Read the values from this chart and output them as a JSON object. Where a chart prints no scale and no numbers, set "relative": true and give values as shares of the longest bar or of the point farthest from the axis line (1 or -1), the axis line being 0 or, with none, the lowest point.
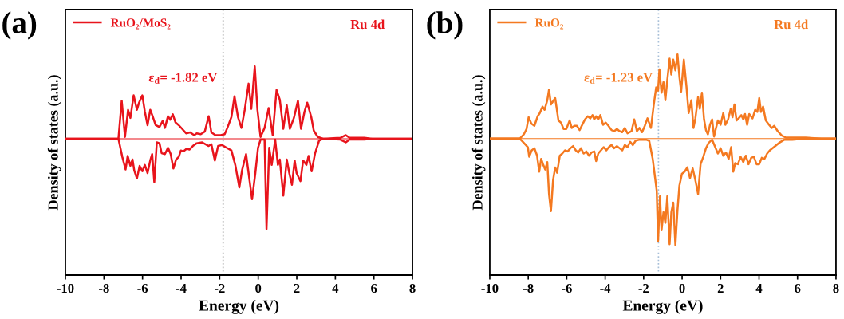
{
  "chart_data": [
    {
      "type": "line",
      "xlabel": "Energy (eV)",
      "ylabel": "Density of states (a.u.)",
      "relative": true,
      "xlim": [
        -10,
        8
      ],
      "xticks": [
        -10,
        -8,
        -6,
        -4,
        -2,
        0,
        2,
        4,
        6,
        8
      ],
      "tick_labels": "x",
      "legend": "top left",
      "grid": false,
      "marker": "none",
      "line_style": "solid",
      "annotations": [
        "(a)",
        "Ru 4d",
        "ε$_{d}$= -1.82 eV"
      ],
      "ref_lines": [
        {
          "axis": "x",
          "value": -1.82,
          "color": "#aaaaaa",
          "line_style": "dotted"
        },
        {
          "axis": "y",
          "value": 0,
          "color": "#e8141c",
          "line_style": "solid"
        }
      ],
      "series": [
        {
          "name": "RuO₂/MoS₂",
          "color": "#e8141c",
          "x": [
            -10,
            -7.25,
            -7.08,
            -6.91,
            -6.75,
            -6.63,
            -6.46,
            -6.29,
            -6.18,
            -6.01,
            -5.88,
            -5.74,
            -5.6,
            -5.46,
            -5.32,
            -5.12,
            -4.95,
            -4.84,
            -4.68,
            -4.57,
            -4.43,
            -4.29,
            -4.12,
            -3.95,
            -3.74,
            -3.53,
            -3.32,
            -3.19,
            -2.98,
            -2.77,
            -2.57,
            -2.43,
            -2.22,
            -1.94,
            -1.74,
            -1.6,
            -1.39,
            -1.23,
            -1.05,
            -0.87,
            -0.7,
            -0.5,
            -0.36,
            -0.18,
            -0.04,
            0.12,
            0.33,
            0.54,
            0.75,
            0.95,
            1.12,
            1.3,
            1.48,
            1.64,
            1.85,
            2.06,
            2.22,
            2.4,
            2.54,
            2.75,
            2.88,
            3.09,
            3.37,
            4.26,
            4.54,
            4.74,
            5.5,
            5.92,
            8
          ],
          "values": [
            0,
            0,
            0.42,
            0.02,
            0.32,
            0.23,
            0.48,
            0.32,
            0.4,
            0.48,
            0.3,
            0.15,
            0.32,
            0.24,
            0.15,
            0.13,
            0.2,
            0.12,
            0.25,
            0.21,
            0.27,
            0.18,
            0.15,
            0.11,
            0.06,
            0.07,
            0.04,
            0.06,
            0.05,
            0.08,
            0.25,
            0.07,
            0.04,
            0.04,
            0.05,
            0.12,
            0.24,
            0.47,
            0.24,
            0.12,
            0.32,
            0.61,
            0.33,
            0.8,
            0.32,
            0.02,
            0.12,
            0.34,
            0.04,
            0.54,
            0.43,
            0.11,
            0.37,
            0.11,
            0.23,
            0.42,
            0.11,
            0.3,
            0.4,
            0.24,
            0.09,
            0.02,
            0,
            0.01,
            0.04,
            0.01,
            0.01,
            0,
            0
          ]
        },
        {
          "color": "#e8141c",
          "x": [
            -10,
            -7.25,
            -7.05,
            -6.88,
            -6.77,
            -6.63,
            -6.52,
            -6.43,
            -6.29,
            -6.15,
            -6.01,
            -5.88,
            -5.74,
            -5.6,
            -5.5,
            -5.39,
            -5.26,
            -5.12,
            -5.01,
            -4.84,
            -4.68,
            -4.54,
            -4.4,
            -4.26,
            -4.12,
            -4.01,
            -3.88,
            -3.71,
            -3.57,
            -3.39,
            -3.19,
            -2.91,
            -2.57,
            -2.43,
            -2.25,
            -2.08,
            -1.88,
            -1.64,
            -1.39,
            -1.19,
            -0.98,
            -0.84,
            -0.63,
            -0.5,
            -0.32,
            -0.15,
            -0.01,
            0.12,
            0.33,
            0.43,
            0.57,
            0.7,
            0.88,
            1.02,
            1.12,
            1.3,
            1.48,
            1.61,
            1.75,
            1.89,
            1.99,
            2.19,
            2.33,
            2.5,
            2.61,
            2.77,
            2.95,
            3.16,
            3.37,
            4.26,
            4.54,
            4.74,
            5.5,
            5.92,
            8
          ],
          "values": [
            0,
            0,
            -0.2,
            -0.34,
            -0.19,
            -0.3,
            -0.23,
            -0.35,
            -0.44,
            -0.3,
            -0.36,
            -0.29,
            -0.38,
            -0.24,
            -0.17,
            -0.48,
            -0.04,
            -0.05,
            -0.16,
            -0.17,
            -0.1,
            -0.17,
            -0.33,
            -0.23,
            -0.2,
            -0.13,
            -0.14,
            -0.11,
            -0.12,
            -0.08,
            -0.05,
            -0.04,
            -0.08,
            -0.06,
            -0.24,
            -0.08,
            -0.07,
            -0.1,
            -0.13,
            -0.29,
            -0.54,
            -0.35,
            -0.17,
            -0.38,
            -0.67,
            -0.38,
            -0.1,
            -0.01,
            -0.01,
            -1,
            -0.1,
            -0.29,
            -0.01,
            -0.29,
            -0.23,
            -0.63,
            -0.23,
            -0.38,
            -0.51,
            -0.24,
            -0.38,
            -0.47,
            -0.24,
            -0.29,
            -0.19,
            -0.36,
            -0.16,
            -0.02,
            0,
            -0.01,
            -0.04,
            -0.01,
            -0.01,
            0,
            0
          ]
        }
      ]
    },
    {
      "type": "line",
      "xlabel": "Energy (eV)",
      "ylabel": "Density of states (a.u.)",
      "relative": true,
      "xlim": [
        -10,
        8
      ],
      "xticks": [
        -10,
        -8,
        -6,
        -4,
        -2,
        0,
        2,
        4,
        6,
        8
      ],
      "tick_labels": "x",
      "legend": "top left",
      "grid": false,
      "marker": "none",
      "line_style": "solid",
      "annotations": [
        "(b)",
        "Ru 4d",
        "ε$_{d}$= -1.23 eV"
      ],
      "ref_lines": [
        {
          "axis": "x",
          "value": -1.23,
          "color": "#a8bfd8",
          "line_style": "dotted"
        },
        {
          "axis": "y",
          "value": 0,
          "color": "#f47920",
          "line_style": "solid"
        }
      ],
      "series": [
        {
          "name": "RuO₂",
          "color": "#f47920",
          "x": [
            -10,
            -8.44,
            -8.23,
            -8.09,
            -7.98,
            -7.84,
            -7.68,
            -7.51,
            -7.4,
            -7.26,
            -7.15,
            -7.01,
            -6.92,
            -6.82,
            -6.71,
            -6.6,
            -6.43,
            -6.3,
            -6.16,
            -6.02,
            -5.85,
            -5.74,
            -5.6,
            -5.47,
            -5.33,
            -5.19,
            -5.05,
            -4.91,
            -4.77,
            -4.66,
            -4.57,
            -4.47,
            -4.36,
            -4.25,
            -4.11,
            -3.97,
            -3.83,
            -3.67,
            -3.53,
            -3.39,
            -3.25,
            -3.12,
            -2.98,
            -2.84,
            -2.63,
            -2.49,
            -2.35,
            -2.22,
            -2.08,
            -1.94,
            -1.8,
            -1.62,
            -1.48,
            -1.35,
            -1.25,
            -1.18,
            -1.07,
            -0.97,
            -0.87,
            -0.77,
            -0.65,
            -0.56,
            -0.46,
            -0.35,
            -0.24,
            -0.14,
            -0.05,
            0.09,
            0.23,
            0.34,
            0.48,
            0.59,
            0.69,
            0.83,
            0.92,
            1.03,
            1.14,
            1.24,
            1.34,
            1.45,
            1.56,
            1.66,
            1.75,
            1.86,
            2.0,
            2.14,
            2.25,
            2.39,
            2.53,
            2.62,
            2.72,
            2.83,
            2.94,
            3.08,
            3.18,
            3.27,
            3.38,
            3.49,
            3.66,
            3.8,
            3.91,
            4.01,
            4.1,
            4.21,
            4.35,
            4.52,
            4.66,
            4.79,
            4.97,
            5.18,
            5.39,
            5.73,
            6.42,
            7.25,
            8
          ],
          "values": [
            0,
            0,
            0.04,
            0.09,
            0.2,
            0.14,
            0.12,
            0.21,
            0.24,
            0.3,
            0.27,
            0.36,
            0.46,
            0.32,
            0.35,
            0.38,
            0.17,
            0.15,
            0.09,
            0.09,
            0.17,
            0.1,
            0.12,
            0.12,
            0.08,
            0.13,
            0.18,
            0.21,
            0.19,
            0.22,
            0.18,
            0.21,
            0.18,
            0.22,
            0.13,
            0.15,
            0.12,
            0.08,
            0.07,
            0.09,
            0.07,
            0.06,
            0.1,
            0.05,
            0.07,
            0.18,
            0.07,
            0.1,
            0.06,
            0.12,
            0.19,
            0.1,
            0.31,
            0.48,
            0.45,
            0.65,
            0.43,
            0.53,
            0.36,
            0.55,
            0.75,
            0.6,
            0.74,
            0.64,
            0.79,
            0.58,
            0.44,
            0.74,
            0.48,
            0.24,
            0.36,
            0.1,
            0.19,
            0.39,
            0.28,
            0.43,
            0.18,
            0.08,
            0.04,
            0.13,
            0.18,
            0.02,
            0.09,
            0.17,
            0.13,
            0.24,
            0.13,
            0.18,
            0.28,
            0.2,
            0.32,
            0.17,
            0.19,
            0.22,
            0.18,
            0.23,
            0.13,
            0.23,
            0.19,
            0.27,
            0.25,
            0.38,
            0.25,
            0.3,
            0.17,
            0.13,
            0.1,
            0.12,
            0.07,
            0.03,
            0.01,
            0.01,
            0.01,
            0,
            0
          ]
        },
        {
          "color": "#f47920",
          "x": [
            -10,
            -8.44,
            -8.23,
            -8.02,
            -7.95,
            -7.82,
            -7.68,
            -7.54,
            -7.43,
            -7.33,
            -7.23,
            -7.12,
            -7.01,
            -6.92,
            -6.82,
            -6.71,
            -6.6,
            -6.5,
            -6.36,
            -6.23,
            -6.09,
            -5.95,
            -5.81,
            -5.67,
            -5.53,
            -5.4,
            -5.26,
            -5.12,
            -4.98,
            -4.84,
            -4.71,
            -4.57,
            -4.47,
            -4.36,
            -4.22,
            -4.08,
            -3.94,
            -3.81,
            -3.67,
            -3.53,
            -3.39,
            -3.25,
            -3.11,
            -2.98,
            -2.84,
            -2.7,
            -2.56,
            -2.42,
            -2.22,
            -1.87,
            -1.71,
            -1.53,
            -1.32,
            -1.25,
            -1.15,
            -1.07,
            -0.97,
            -0.87,
            -0.77,
            -0.65,
            -0.56,
            -0.46,
            -0.35,
            -0.24,
            -0.14,
            -0.01,
            0.13,
            0.27,
            0.41,
            0.55,
            0.69,
            0.83,
            0.96,
            1.1,
            1.24,
            1.38,
            1.56,
            1.7,
            1.86,
            2.0,
            2.14,
            2.28,
            2.42,
            2.55,
            2.66,
            2.76,
            2.9,
            3.04,
            3.18,
            3.31,
            3.45,
            3.59,
            3.73,
            3.87,
            4.01,
            4.14,
            4.28,
            4.42,
            4.56,
            4.77,
            5.04,
            5.32,
            5.73,
            6.42,
            7.25,
            8
          ],
          "values": [
            0,
            0,
            -0.04,
            -0.08,
            -0.17,
            -0.11,
            -0.09,
            -0.16,
            -0.31,
            -0.19,
            -0.24,
            -0.29,
            -0.22,
            -0.52,
            -0.68,
            -0.39,
            -0.27,
            -0.32,
            -0.16,
            -0.14,
            -0.11,
            -0.12,
            -0.09,
            -0.07,
            -0.11,
            -0.13,
            -0.09,
            -0.14,
            -0.12,
            -0.16,
            -0.13,
            -0.12,
            -0.21,
            -0.14,
            -0.11,
            -0.08,
            -0.11,
            -0.08,
            -0.06,
            -0.09,
            -0.07,
            -0.09,
            -0.11,
            -0.06,
            -0.08,
            -0.03,
            -0.06,
            -0.02,
            -0.01,
            -0.01,
            -0.02,
            -0.19,
            -0.49,
            -0.96,
            -0.54,
            -0.86,
            -0.69,
            -0.79,
            -0.54,
            -0.99,
            -0.69,
            -0.6,
            -1,
            -0.67,
            -0.44,
            -0.33,
            -0.31,
            -0.27,
            -0.37,
            -0.28,
            -0.39,
            -0.52,
            -0.24,
            -0.17,
            -0.09,
            -0.04,
            -0.01,
            -0.07,
            -0.14,
            -0.09,
            -0.16,
            -0.13,
            -0.19,
            -0.08,
            -0.31,
            -0.23,
            -0.24,
            -0.17,
            -0.22,
            -0.16,
            -0.24,
            -0.18,
            -0.17,
            -0.24,
            -0.24,
            -0.18,
            -0.19,
            -0.14,
            -0.11,
            -0.08,
            -0.04,
            -0.01,
            -0.01,
            0,
            0,
            0
          ]
        }
      ]
    }
  ]
}
